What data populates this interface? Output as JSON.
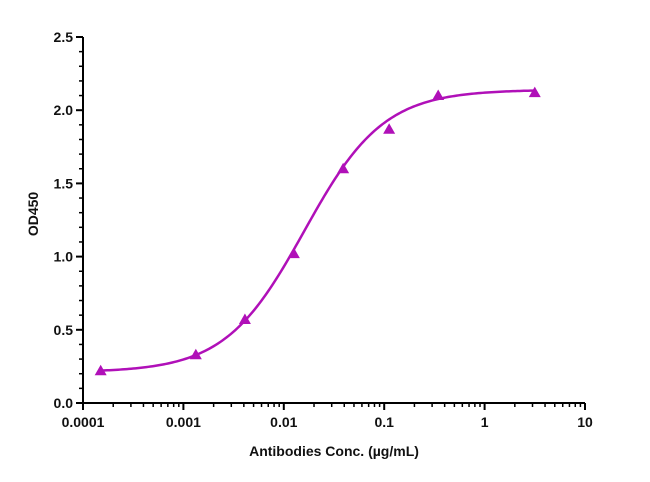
{
  "chart_data": {
    "type": "scatter",
    "title": "",
    "xlabel": "Antibodies Conc. (µg/mL)",
    "ylabel": "OD450",
    "xscale": "log",
    "xlim": [
      0.0001,
      10
    ],
    "ylim": [
      0.0,
      2.5
    ],
    "x_ticks": [
      "0.0001",
      "0.001",
      "0.01",
      "0.1",
      "1",
      "10"
    ],
    "y_ticks": [
      "0.0",
      "0.5",
      "1.0",
      "1.5",
      "2.0",
      "2.5"
    ],
    "grid": false,
    "legend": null,
    "series": [
      {
        "name": "OD450",
        "marker": "triangle",
        "color": "#B010B8",
        "x": [
          0.00015,
          0.00133,
          0.0041,
          0.0126,
          0.039,
          0.112,
          0.345,
          3.16
        ],
        "y": [
          0.22,
          0.33,
          0.57,
          1.02,
          1.6,
          1.87,
          2.1,
          2.12
        ]
      }
    ],
    "fit": {
      "model": "4PL",
      "bottom": 0.21,
      "top": 2.14,
      "ec50": 0.016,
      "hill": 1.1,
      "color": "#B010B8"
    }
  }
}
